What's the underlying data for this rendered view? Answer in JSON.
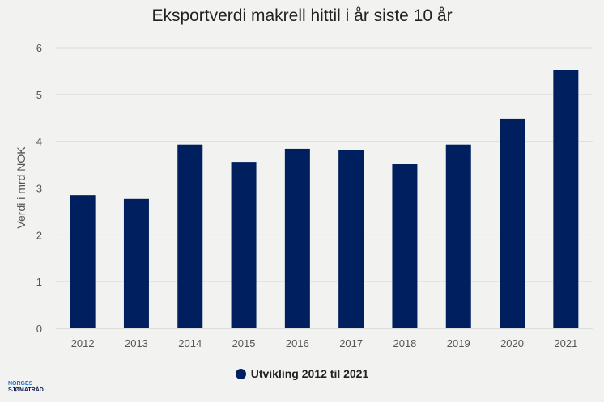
{
  "chart_data": {
    "type": "bar",
    "title": "Eksportverdi makrell hittil i år siste 10 år",
    "xlabel": "",
    "ylabel": "Verdi i mrd NOK",
    "ylim": [
      0,
      6
    ],
    "yticks": [
      0,
      1,
      2,
      3,
      4,
      5,
      6
    ],
    "grid": true,
    "legend_position": "bottom",
    "categories": [
      "2012",
      "2013",
      "2014",
      "2015",
      "2016",
      "2017",
      "2018",
      "2019",
      "2020",
      "2021"
    ],
    "series": [
      {
        "name": "Utvikling 2012 til 2021",
        "color": "#001f5f",
        "values": [
          2.85,
          2.77,
          3.93,
          3.56,
          3.84,
          3.82,
          3.51,
          3.93,
          4.48,
          5.52
        ]
      }
    ]
  },
  "logo": {
    "line1": "NORGES",
    "line2": "SJØMATRÅD"
  }
}
